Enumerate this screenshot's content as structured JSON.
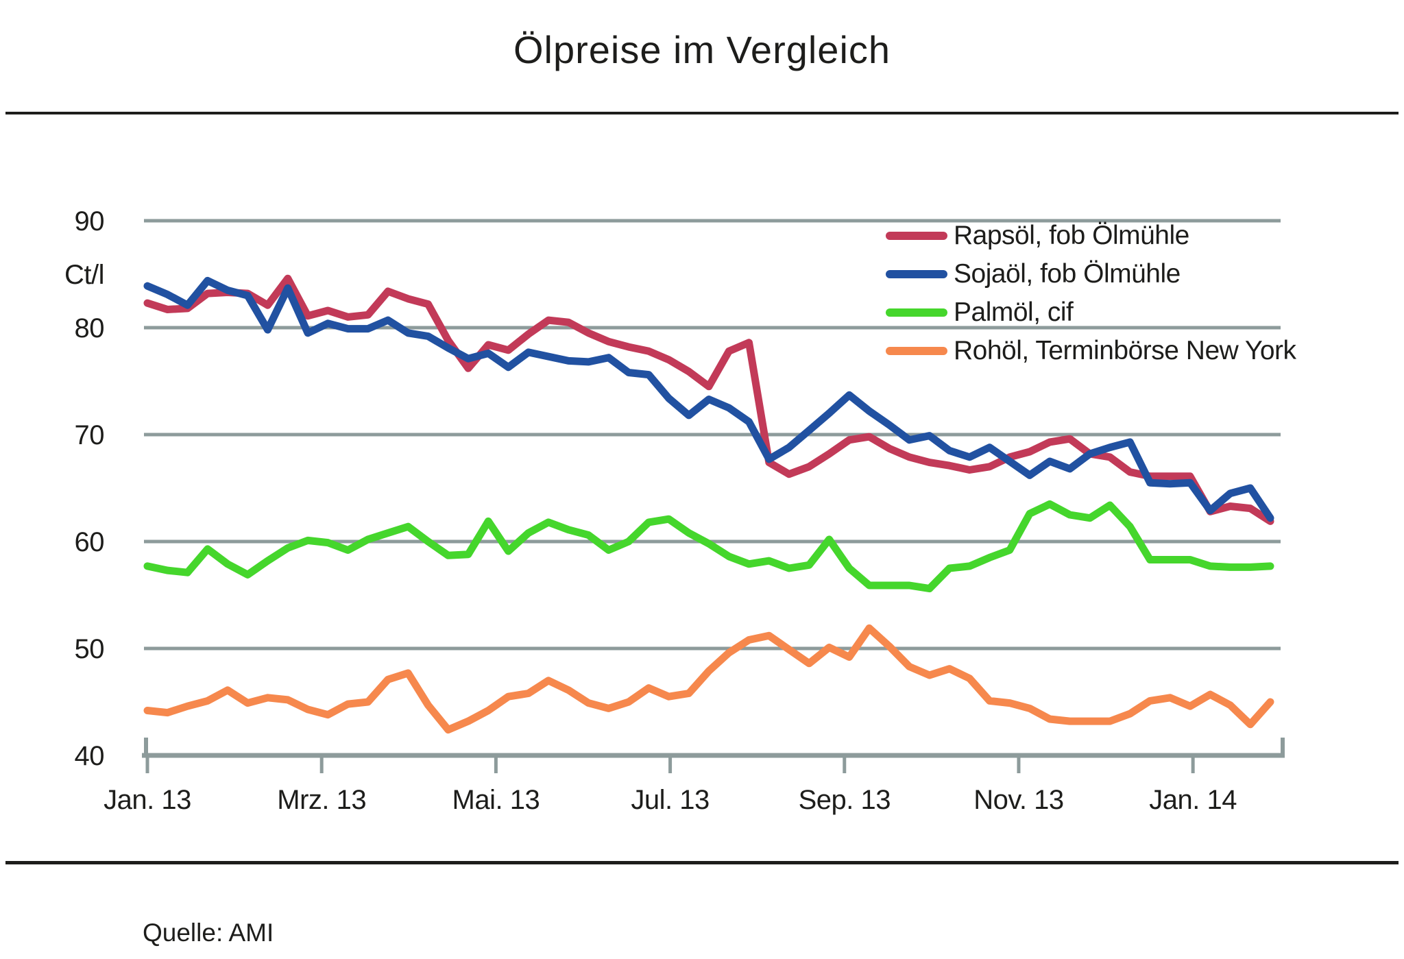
{
  "title": "Ölpreise im Vergleich",
  "source": "Quelle: AMI",
  "colors": {
    "rapsoel": "#c23a58",
    "sojaoel": "#2151a1",
    "palmoel": "#45d62c",
    "rohoel": "#f6884d",
    "grid": "#8d9b9b",
    "text": "#1d1d1b"
  },
  "y_axis": {
    "unit_label": "Ct/l",
    "ticks": [
      90,
      80,
      70,
      60,
      50,
      40
    ]
  },
  "x_axis": {
    "tick_labels": [
      "Jan. 13",
      "Mrz. 13",
      "Mai. 13",
      "Jul. 13",
      "Sep. 13",
      "Nov. 13",
      "Jan. 14"
    ]
  },
  "chart_data": {
    "type": "line",
    "title": "Ölpreise im Vergleich",
    "ylabel": "Ct/l",
    "ylim": [
      40,
      90
    ],
    "gridlines": [
      90,
      80,
      70,
      60,
      50
    ],
    "grid": "horizontal-only",
    "legend_position": "top-right",
    "x_unit": "weekly observations, Jan 2013 - Feb 2014",
    "x_tick_labels": [
      "Jan. 13",
      "Mrz. 13",
      "Mai. 13",
      "Jul. 13",
      "Sep. 13",
      "Nov. 13",
      "Jan. 14"
    ],
    "series": [
      {
        "name": "Rapsöl, fob Ölmühle",
        "color": "#c23a58",
        "values": [
          82.3,
          81.7,
          81.8,
          83.2,
          83.3,
          83.2,
          82.1,
          84.6,
          81.1,
          81.6,
          81.0,
          81.2,
          83.4,
          82.7,
          82.2,
          78.8,
          76.2,
          78.4,
          77.9,
          79.4,
          80.7,
          80.5,
          79.5,
          78.7,
          78.2,
          77.8,
          77.0,
          75.9,
          74.5,
          77.8,
          78.6,
          67.4,
          66.3,
          67.0,
          68.2,
          69.5,
          69.8,
          68.7,
          67.9,
          67.4,
          67.1,
          66.7,
          67.0,
          67.9,
          68.4,
          69.3,
          69.6,
          68.2,
          67.9,
          66.5,
          66.1,
          66.1,
          66.1,
          62.8,
          63.3,
          63.1,
          61.9
        ]
      },
      {
        "name": "Sojaöl, fob Ölmühle",
        "color": "#2151a1",
        "values": [
          83.9,
          83.1,
          82.1,
          84.4,
          83.5,
          83.0,
          79.8,
          83.7,
          79.5,
          80.4,
          79.9,
          79.9,
          80.7,
          79.5,
          79.2,
          78.1,
          77.1,
          77.6,
          76.3,
          77.7,
          77.3,
          76.9,
          76.8,
          77.2,
          75.8,
          75.6,
          73.4,
          71.8,
          73.3,
          72.5,
          71.2,
          67.7,
          68.8,
          70.4,
          72.0,
          73.7,
          72.2,
          70.9,
          69.5,
          69.9,
          68.5,
          67.9,
          68.8,
          67.5,
          66.2,
          67.5,
          66.8,
          68.2,
          68.8,
          69.3,
          65.5,
          65.4,
          65.5,
          62.9,
          64.5,
          65.0,
          62.2
        ]
      },
      {
        "name": "Palmöl, cif",
        "color": "#45d62c",
        "values": [
          57.7,
          57.3,
          57.1,
          59.3,
          57.9,
          56.9,
          58.2,
          59.4,
          60.1,
          59.9,
          59.2,
          60.2,
          60.8,
          61.4,
          60.0,
          58.7,
          58.8,
          61.9,
          59.1,
          60.8,
          61.8,
          61.1,
          60.6,
          59.2,
          60.0,
          61.8,
          62.1,
          60.8,
          59.8,
          58.6,
          57.9,
          58.2,
          57.5,
          57.8,
          60.2,
          57.5,
          55.9,
          55.9,
          55.9,
          55.6,
          57.5,
          57.7,
          58.5,
          59.2,
          62.6,
          63.5,
          62.5,
          62.2,
          63.4,
          61.4,
          58.3,
          58.3,
          58.3,
          57.7,
          57.6,
          57.6,
          57.7
        ]
      },
      {
        "name": "Rohöl, Terminbörse  New York",
        "color": "#f6884d",
        "values": [
          44.2,
          44.0,
          44.6,
          45.1,
          46.1,
          44.9,
          45.4,
          45.2,
          44.3,
          43.8,
          44.8,
          45.0,
          47.1,
          47.7,
          44.7,
          42.4,
          43.2,
          44.2,
          45.5,
          45.8,
          47.0,
          46.1,
          44.9,
          44.4,
          45.0,
          46.3,
          45.5,
          45.8,
          47.9,
          49.6,
          50.8,
          51.2,
          49.9,
          48.6,
          50.1,
          49.2,
          51.9,
          50.2,
          48.3,
          47.5,
          48.1,
          47.2,
          45.1,
          44.9,
          44.4,
          43.4,
          43.2,
          43.2,
          43.2,
          43.9,
          45.1,
          45.4,
          44.6,
          45.7,
          44.7,
          42.9,
          45.0
        ]
      }
    ]
  }
}
